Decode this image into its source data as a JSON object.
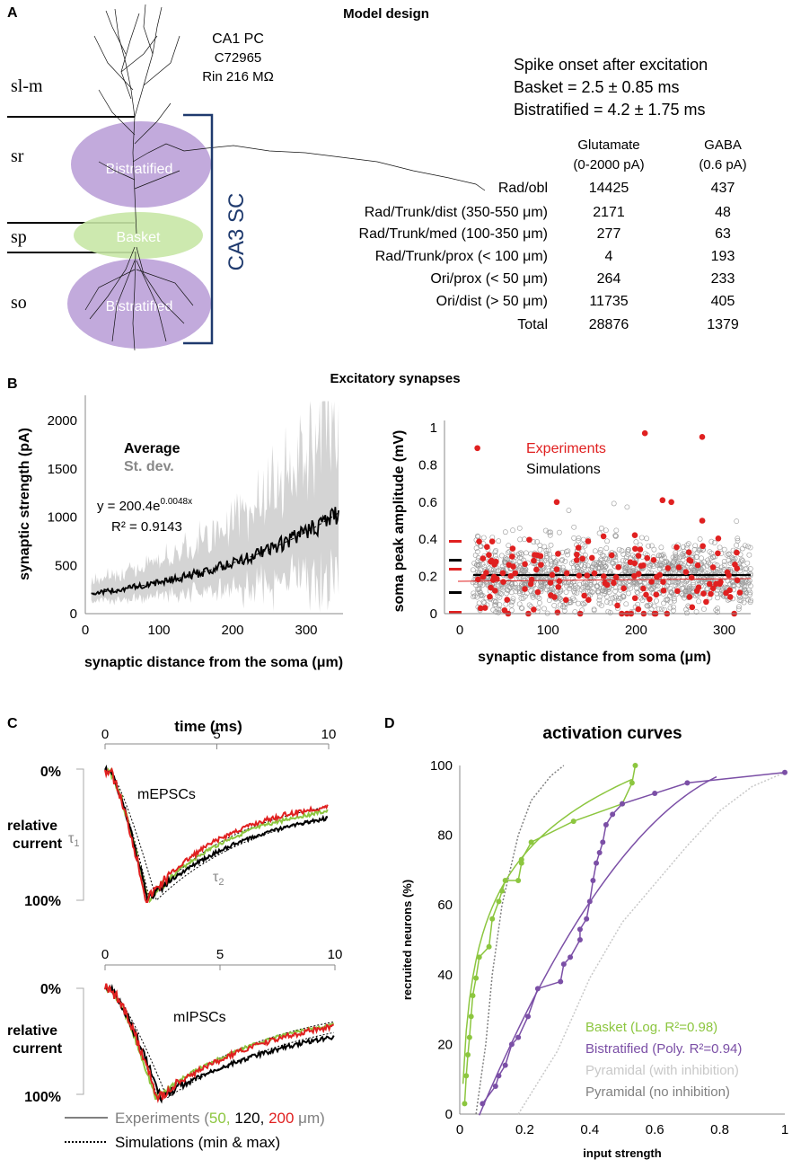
{
  "panelA": {
    "letter": "A",
    "title": "Model design",
    "cell": {
      "line1": "CA1 PC",
      "line2": "C72965",
      "line3": "Rin 216 MΩ"
    },
    "layers": {
      "slm": "sl-m",
      "sr": "sr",
      "sp": "sp",
      "so": "so"
    },
    "ovals": {
      "top": "Bistratified",
      "mid": "Basket",
      "bottom": "Bistratified"
    },
    "ca3": "CA3 SC",
    "onset": {
      "title": "Spike onset after excitation",
      "basket": "Basket = 2.5 ± 0.85 ms",
      "bistrat": "Bistratified = 4.2 ± 1.75 ms"
    },
    "table": {
      "col1": {
        "l1": "Glutamate",
        "l2": "(0-2000 pA)"
      },
      "col2": {
        "l1": "GABA",
        "l2": "(0.6 pA)"
      },
      "rows": [
        {
          "label": "Rad/obl",
          "glu": "14425",
          "gaba": "437"
        },
        {
          "label": "Rad/Trunk/dist (350-550 μm)",
          "glu": "2171",
          "gaba": "48"
        },
        {
          "label": "Rad/Trunk/med (100-350 μm)",
          "glu": "277",
          "gaba": "63"
        },
        {
          "label": "Rad/Trunk/prox (< 100 μm)",
          "glu": "4",
          "gaba": "193"
        },
        {
          "label": "Ori/prox (< 50 μm)",
          "glu": "264",
          "gaba": "233"
        },
        {
          "label": "Ori/dist (> 50 μm)",
          "glu": "11735",
          "gaba": "405"
        },
        {
          "label": "Total",
          "glu": "28876",
          "gaba": "1379"
        }
      ]
    }
  },
  "panelB": {
    "letter": "B",
    "title": "Excitatory synapses",
    "left": {
      "ylabel": "synaptic strength (pA)",
      "xlabel": "synaptic distance from the soma (μm)",
      "yticks": [
        "0",
        "500",
        "1000",
        "1500",
        "2000"
      ],
      "xticks": [
        "0",
        "100",
        "200",
        "300"
      ],
      "legend_avg": "Average",
      "legend_sd": "St. dev.",
      "eq_base": "y = 200.4e",
      "eq_exp": "0.0048x",
      "r2": "R² = 0.9143"
    },
    "right": {
      "ylabel": "soma peak amplitude (mV)",
      "xlabel": "synaptic distance from soma (μm)",
      "yticks": [
        "0",
        "0.2",
        "0.4",
        "0.6",
        "0.8",
        "1"
      ],
      "xticks": [
        "0",
        "100",
        "200",
        "300"
      ],
      "legend_exp": "Experiments",
      "legend_sim": "Simulations"
    }
  },
  "panelC": {
    "letter": "C",
    "time_label": "time (ms)",
    "xticks_top": [
      "0",
      "5",
      "10"
    ],
    "xticks_bot": [
      "0",
      "5",
      "10"
    ],
    "y0": "0%",
    "y100": "100%",
    "rel1": "relative",
    "rel2": "current",
    "mepsc": "mEPSCs",
    "mipsc": "mIPSCs",
    "tau1": "τ",
    "tau1sub": "1",
    "tau2": "τ",
    "tau2sub": "2",
    "leg_exp": "Experiments (",
    "leg_50": "50,",
    "leg_120": " 120, ",
    "leg_200": "200",
    "leg_unit": " μm)",
    "leg_sim": "Simulations (min & max)"
  },
  "panelD": {
    "letter": "D",
    "title": "activation curves",
    "ylabel": "recruited neurons (%)",
    "xlabel": "input strength",
    "yticks": [
      "0",
      "20",
      "40",
      "60",
      "80",
      "100"
    ],
    "xticks": [
      "0",
      "0.2",
      "0.4",
      "0.6",
      "0.8",
      "1"
    ],
    "leg_basket": "Basket (Log. R²=0.98)",
    "leg_bistrat": "Bistratified (Poly. R²=0.94)",
    "leg_pyr_inh": "Pyramidal (with inhibition)",
    "leg_pyr_noinh": "Pyramidal (no inhibition)",
    "colors": {
      "basket": "#8cc63f",
      "bistrat": "#7b4fa6",
      "pyr_inh": "#c8c8c8",
      "pyr_noinh": "#808080"
    }
  },
  "chart_data": [
    {
      "type": "line",
      "title": "Excitatory synapses",
      "xlabel": "synaptic distance from the soma (μm)",
      "ylabel": "synaptic strength (pA)",
      "xlim": [
        0,
        350
      ],
      "ylim": [
        0,
        2200
      ],
      "series": [
        {
          "name": "Average",
          "x": [
            10,
            50,
            100,
            150,
            200,
            250,
            300,
            345
          ],
          "values": [
            240,
            290,
            330,
            440,
            500,
            620,
            850,
            1100
          ]
        }
      ]
    },
    {
      "type": "scatter",
      "xlabel": "synaptic distance from soma (μm)",
      "ylabel": "soma peak amplitude (mV)",
      "xlim": [
        0,
        330
      ],
      "ylim": [
        0,
        1
      ],
      "series": [
        {
          "name": "Experiments",
          "x": [
            20,
            110,
            210,
            240,
            275,
            230,
            275,
            35,
            60,
            150,
            180,
            260
          ],
          "values": [
            0.89,
            0.6,
            0.97,
            0.6,
            0.95,
            0.61,
            0.5,
            0.28,
            0.35,
            0.3,
            0.25,
            0.33
          ]
        },
        {
          "name": "Simulations",
          "x": [
            30,
            80,
            130,
            180,
            230,
            280,
            320
          ],
          "values": [
            0.2,
            0.22,
            0.19,
            0.21,
            0.2,
            0.18,
            0.2
          ]
        }
      ]
    },
    {
      "type": "line",
      "title": "activation curves",
      "xlabel": "input strength",
      "ylabel": "recruited neurons (%)",
      "xlim": [
        0,
        1
      ],
      "ylim": [
        0,
        100
      ],
      "series": [
        {
          "name": "Basket (Log. R²=0.98)",
          "x": [
            0.015,
            0.02,
            0.025,
            0.03,
            0.035,
            0.04,
            0.05,
            0.06,
            0.09,
            0.1,
            0.12,
            0.13,
            0.14,
            0.18,
            0.19,
            0.19,
            0.22,
            0.35,
            0.5,
            0.53,
            0.54
          ],
          "values": [
            3,
            11,
            17,
            22,
            28,
            34,
            39,
            45,
            48,
            56,
            61,
            64,
            67,
            67,
            72,
            73,
            78,
            84,
            89,
            95,
            100
          ]
        },
        {
          "name": "Bistratified (Poly. R²=0.94)",
          "x": [
            0.07,
            0.11,
            0.12,
            0.14,
            0.16,
            0.18,
            0.21,
            0.24,
            0.31,
            0.32,
            0.34,
            0.37,
            0.37,
            0.39,
            0.4,
            0.41,
            0.42,
            0.43,
            0.44,
            0.45,
            0.47,
            0.5,
            0.6,
            0.7,
            1.0
          ],
          "values": [
            3,
            8,
            11,
            14,
            20,
            22,
            28,
            36,
            38,
            43,
            45,
            50,
            53,
            56,
            61,
            67,
            72,
            75,
            78,
            83,
            86,
            89,
            92,
            95,
            98
          ]
        },
        {
          "name": "Pyramidal (with inhibition)",
          "x": [
            0.18,
            0.3,
            0.4,
            0.5,
            0.6,
            0.7,
            0.8,
            0.9,
            1.0
          ],
          "values": [
            0,
            18,
            39,
            55,
            66,
            77,
            87,
            94,
            98
          ]
        },
        {
          "name": "Pyramidal (no inhibition)",
          "x": [
            0.05,
            0.08,
            0.1,
            0.13,
            0.18,
            0.22,
            0.28,
            0.32
          ],
          "values": [
            0,
            20,
            40,
            60,
            80,
            90,
            97,
            100
          ]
        }
      ]
    }
  ]
}
